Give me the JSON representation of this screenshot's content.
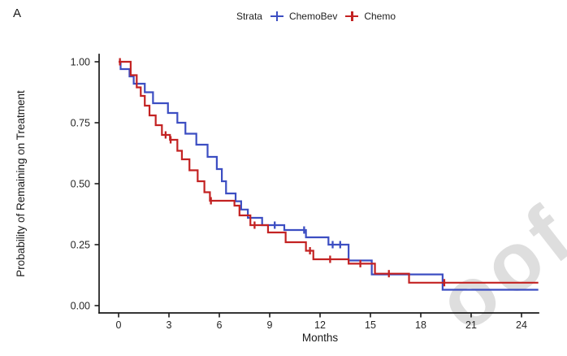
{
  "panel_label": "A",
  "legend": {
    "title": "Strata",
    "items": [
      {
        "label": "ChemoBev",
        "color": "#3C4EC2",
        "marker": "plus"
      },
      {
        "label": "Chemo",
        "color": "#C32222",
        "marker": "plus"
      }
    ]
  },
  "watermark": {
    "text": "oof"
  },
  "chart_data": {
    "type": "line",
    "subtype": "kaplan-meier-step-survival",
    "title": "",
    "xlabel": "Months",
    "ylabel": "Probability of Remaining on Treatment",
    "xlim": [
      0,
      25
    ],
    "ylim": [
      0,
      1
    ],
    "x_ticks": [
      0,
      3,
      6,
      9,
      12,
      15,
      18,
      21,
      24
    ],
    "y_ticks": [
      {
        "value": 1.0,
        "label": "1.00"
      },
      {
        "value": 0.75,
        "label": "0.75"
      },
      {
        "value": 0.5,
        "label": "0.50"
      },
      {
        "value": 0.25,
        "label": "0.25"
      },
      {
        "value": 0.0,
        "label": "0.00"
      }
    ],
    "grid": false,
    "legend_position": "top",
    "curve_end_month": 25.0,
    "series": [
      {
        "name": "ChemoBev",
        "color": "#3C4EC2",
        "steps": [
          [
            0,
            1.0
          ],
          [
            0.12,
            0.97
          ],
          [
            0.65,
            0.94
          ],
          [
            0.9,
            0.91
          ],
          [
            1.56,
            0.875
          ],
          [
            2.05,
            0.83
          ],
          [
            2.94,
            0.79
          ],
          [
            3.5,
            0.75
          ],
          [
            3.98,
            0.705
          ],
          [
            4.63,
            0.66
          ],
          [
            5.3,
            0.61
          ],
          [
            5.85,
            0.56
          ],
          [
            6.15,
            0.51
          ],
          [
            6.4,
            0.46
          ],
          [
            6.97,
            0.428
          ],
          [
            7.3,
            0.394
          ],
          [
            7.7,
            0.36
          ],
          [
            8.55,
            0.33
          ],
          [
            9.87,
            0.31
          ],
          [
            11.16,
            0.28
          ],
          [
            12.5,
            0.25
          ],
          [
            13.7,
            0.185
          ],
          [
            15.08,
            0.128
          ],
          [
            19.3,
            0.065
          ]
        ],
        "censor_ticks": [
          [
            9.3,
            0.33
          ],
          [
            11.05,
            0.31
          ],
          [
            12.75,
            0.25
          ],
          [
            13.2,
            0.25
          ]
        ]
      },
      {
        "name": "Chemo",
        "color": "#C32222",
        "steps": [
          [
            0,
            1.0
          ],
          [
            0.72,
            0.945
          ],
          [
            1.08,
            0.895
          ],
          [
            1.32,
            0.86
          ],
          [
            1.56,
            0.82
          ],
          [
            1.84,
            0.78
          ],
          [
            2.21,
            0.74
          ],
          [
            2.58,
            0.7
          ],
          [
            3.06,
            0.68
          ],
          [
            3.5,
            0.635
          ],
          [
            3.77,
            0.6
          ],
          [
            4.22,
            0.555
          ],
          [
            4.71,
            0.51
          ],
          [
            5.11,
            0.465
          ],
          [
            5.44,
            0.43
          ],
          [
            6.9,
            0.41
          ],
          [
            7.2,
            0.37
          ],
          [
            7.85,
            0.33
          ],
          [
            8.9,
            0.3
          ],
          [
            9.95,
            0.26
          ],
          [
            11.16,
            0.225
          ],
          [
            11.6,
            0.19
          ],
          [
            13.7,
            0.172
          ],
          [
            15.27,
            0.131
          ],
          [
            17.3,
            0.094
          ]
        ],
        "censor_ticks": [
          [
            0.08,
            1.0
          ],
          [
            2.8,
            0.7
          ],
          [
            3.1,
            0.68
          ],
          [
            5.5,
            0.43
          ],
          [
            8.1,
            0.33
          ],
          [
            11.4,
            0.225
          ],
          [
            12.6,
            0.19
          ],
          [
            14.4,
            0.172
          ],
          [
            16.1,
            0.131
          ],
          [
            19.4,
            0.094
          ]
        ]
      }
    ]
  }
}
